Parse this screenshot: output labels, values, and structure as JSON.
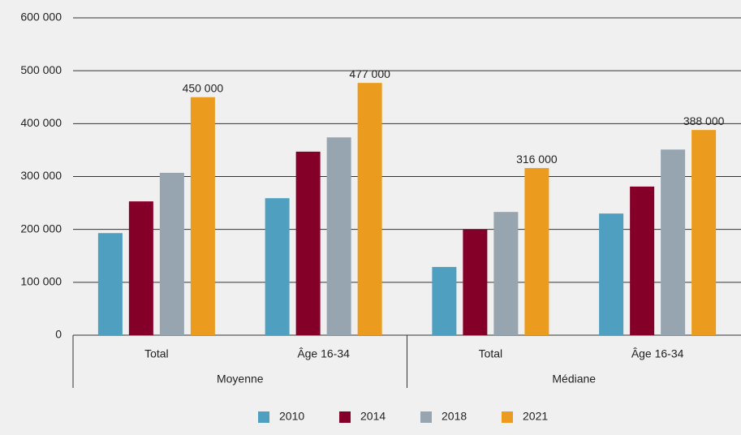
{
  "chart_data": {
    "type": "bar",
    "category_groups": [
      {
        "name": "Moyenne",
        "categories": [
          "Total",
          "Âge 16-34"
        ]
      },
      {
        "name": "Médiane",
        "categories": [
          "Total",
          "Âge 16-34"
        ]
      }
    ],
    "series": [
      {
        "name": "2010",
        "color": "#4f9fc1",
        "values": [
          193000,
          259000,
          129000,
          230000
        ]
      },
      {
        "name": "2014",
        "color": "#850028",
        "values": [
          253000,
          347000,
          200000,
          281000
        ]
      },
      {
        "name": "2018",
        "color": "#97a5b1",
        "values": [
          307000,
          374000,
          233000,
          351000
        ]
      },
      {
        "name": "2021",
        "color": "#eb9c1e",
        "values": [
          450000,
          477000,
          316000,
          388000
        ],
        "value_labels": [
          "450 000",
          "477 000",
          "316 000",
          "388 000"
        ]
      }
    ],
    "ylim": [
      0,
      600000
    ],
    "yticks": [
      0,
      {
        "value": 100000,
        "label": "100 000"
      },
      {
        "value": 200000,
        "label": "200 000"
      },
      {
        "value": 300000,
        "label": "300 000"
      },
      {
        "value": 400000,
        "label": "400 000"
      },
      {
        "value": 500000,
        "label": "500 000"
      },
      {
        "value": 600000,
        "label": "600 000"
      }
    ],
    "grid": true,
    "legend": "bottom"
  }
}
